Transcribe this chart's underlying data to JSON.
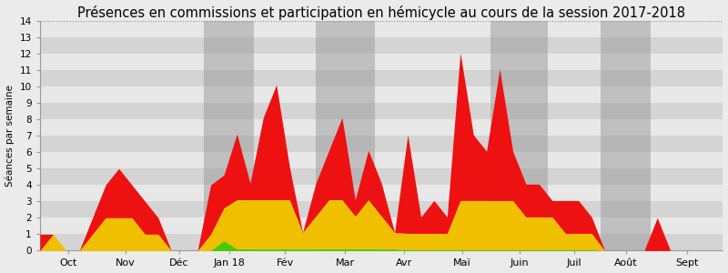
{
  "title": "Présences en commissions et participation en hémicycle au cours de la session 2017-2018",
  "ylabel": "Séances par semaine",
  "ylim": [
    0,
    14
  ],
  "yticks": [
    0,
    1,
    2,
    3,
    4,
    5,
    6,
    7,
    8,
    9,
    10,
    11,
    12,
    13,
    14
  ],
  "background_color": "#ebebeb",
  "red_color": "#ee1111",
  "yellow_color": "#f0c000",
  "green_color": "#44cc00",
  "week_x": [
    0,
    1,
    2,
    3,
    4,
    5,
    6,
    7,
    8,
    9,
    10,
    11,
    12,
    13,
    14,
    15,
    16,
    17,
    18,
    19,
    20,
    21,
    22,
    23,
    24,
    25,
    26,
    27,
    28,
    29,
    30,
    31,
    32,
    33,
    34,
    35,
    36,
    37,
    38,
    39,
    40,
    41,
    42,
    43,
    44,
    45,
    46,
    47,
    48,
    49,
    50,
    51
  ],
  "red_vals": [
    1,
    0,
    0,
    0,
    1,
    2,
    3,
    2,
    2,
    1,
    0,
    0,
    0,
    3,
    2,
    4,
    1,
    5,
    7,
    2,
    0,
    2,
    3,
    5,
    1,
    3,
    2,
    0,
    6,
    1,
    2,
    1,
    9,
    4,
    3,
    8,
    3,
    2,
    2,
    1,
    2,
    2,
    1,
    0,
    0,
    0,
    0,
    2,
    0,
    0,
    0,
    0
  ],
  "yellow_vals": [
    0,
    1,
    0,
    0,
    1,
    2,
    2,
    2,
    1,
    1,
    0,
    0,
    0,
    1,
    2,
    3,
    3,
    3,
    3,
    3,
    1,
    2,
    3,
    3,
    2,
    3,
    2,
    1,
    1,
    1,
    1,
    1,
    3,
    3,
    3,
    3,
    3,
    2,
    2,
    2,
    1,
    1,
    1,
    0,
    0,
    0,
    0,
    0,
    0,
    0,
    0,
    0
  ],
  "green_vals": [
    0,
    0,
    0,
    0,
    0,
    0,
    0,
    0,
    0,
    0,
    0,
    0,
    0,
    0,
    0.6,
    0.1,
    0.1,
    0.1,
    0.1,
    0.1,
    0.1,
    0.1,
    0.1,
    0.1,
    0.1,
    0.1,
    0.1,
    0.1,
    0.05,
    0.05,
    0.05,
    0.05,
    0.05,
    0.05,
    0.05,
    0.05,
    0.05,
    0.05,
    0.05,
    0.05,
    0.05,
    0.05,
    0.05,
    0,
    0,
    0,
    0,
    0,
    0,
    0,
    0,
    0
  ],
  "month_boundaries": [
    0,
    4.3,
    8.7,
    12.5,
    16.3,
    21.0,
    25.5,
    30.0,
    34.3,
    38.7,
    42.7,
    46.5,
    52
  ],
  "month_labels": [
    "Oct",
    "Nov",
    "Déc",
    "Jan 18",
    "Fév",
    "Mar",
    "Avr",
    "Maï",
    "Juin",
    "Juil",
    "Août",
    "Sept"
  ],
  "dark_month_indices": [
    3,
    5,
    8,
    10
  ],
  "title_fontsize": 10.5
}
